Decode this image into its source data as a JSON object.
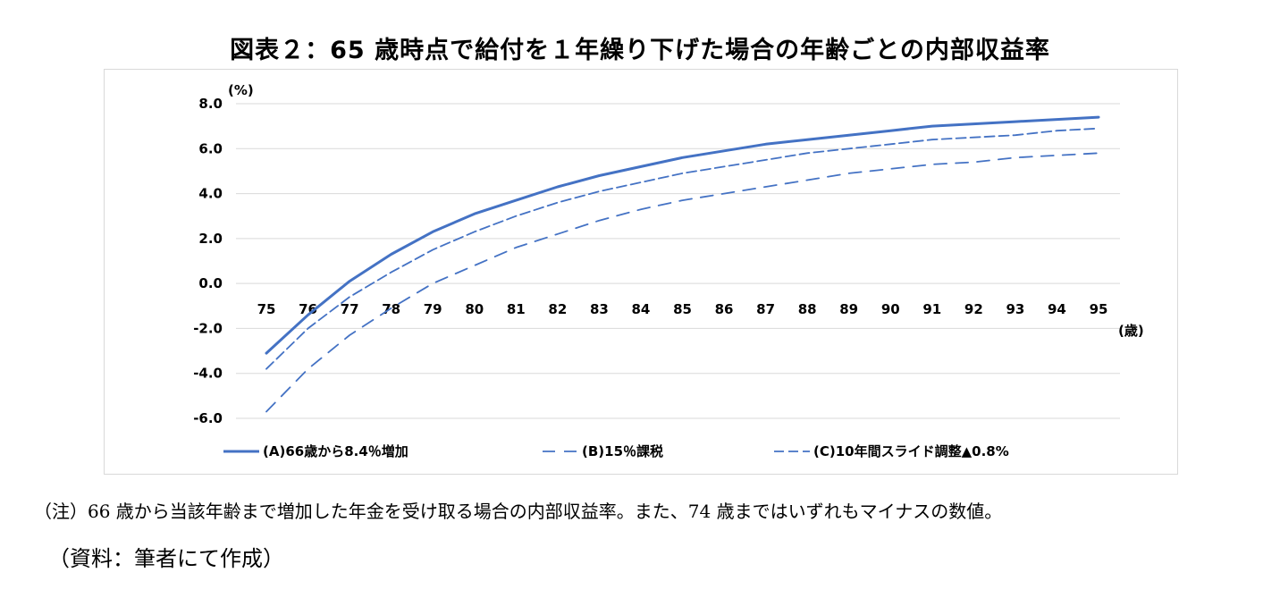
{
  "title": "図表２：65 歳時点で給付を１年繰り下げた場合の年齢ごとの内部収益率",
  "note": "（注）66 歳から当該年齢まで増加した年金を受け取る場合の内部収益率。また、74 歳まではいずれもマイナスの数値。",
  "source": "（資料：筆者にて作成）",
  "chart_data": {
    "type": "line",
    "y_unit_label": "(%)",
    "x_unit_label": "(歳)",
    "ylim": [
      -6.0,
      8.0
    ],
    "y_ticks": [
      "8.0",
      "6.0",
      "4.0",
      "2.0",
      "0.0",
      "-2.0",
      "-4.0",
      "-6.0"
    ],
    "y_tick_values": [
      8,
      6,
      4,
      2,
      0,
      -2,
      -4,
      -6
    ],
    "grid": true,
    "legend_position": "bottom",
    "x": [
      75,
      76,
      77,
      78,
      79,
      80,
      81,
      82,
      83,
      84,
      85,
      86,
      87,
      88,
      89,
      90,
      91,
      92,
      93,
      94,
      95
    ],
    "series": [
      {
        "name": "(A)66歳から8.4％増加",
        "style": "solid",
        "color": "#4472c4",
        "values": [
          -3.1,
          -1.4,
          0.1,
          1.3,
          2.3,
          3.1,
          3.7,
          4.3,
          4.8,
          5.2,
          5.6,
          5.9,
          6.2,
          6.4,
          6.6,
          6.8,
          7.0,
          7.1,
          7.2,
          7.3,
          7.4
        ]
      },
      {
        "name": "(B)15％課税",
        "style": "longdash",
        "color": "#4472c4",
        "values": [
          -5.7,
          -3.8,
          -2.3,
          -1.1,
          0.0,
          0.8,
          1.6,
          2.2,
          2.8,
          3.3,
          3.7,
          4.0,
          4.3,
          4.6,
          4.9,
          5.1,
          5.3,
          5.4,
          5.6,
          5.7,
          5.8
        ]
      },
      {
        "name": "(C)10年間スライド調整▲0.8%",
        "style": "shortdash",
        "color": "#4472c4",
        "values": [
          -3.8,
          -2.0,
          -0.6,
          0.5,
          1.5,
          2.3,
          3.0,
          3.6,
          4.1,
          4.5,
          4.9,
          5.2,
          5.5,
          5.8,
          6.0,
          6.2,
          6.4,
          6.5,
          6.6,
          6.8,
          6.9
        ]
      }
    ]
  }
}
